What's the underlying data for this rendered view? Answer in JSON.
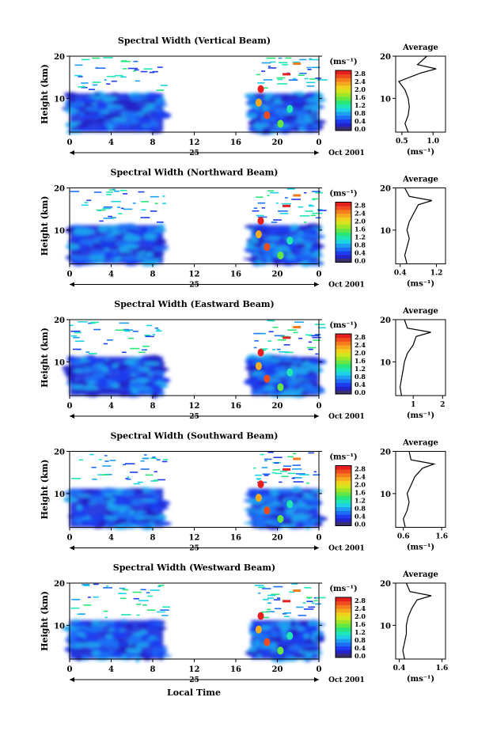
{
  "figure": {
    "common_xlabel": "Local Time",
    "date_label": "Oct 2001",
    "day_label": "25",
    "colorbar": {
      "unit": "(ms⁻¹)",
      "ticks": [
        "2.8",
        "2.4",
        "2.0",
        "1.6",
        "1.2",
        "0.8",
        "0.4",
        "0.0"
      ],
      "colors": [
        "#3a2f6e",
        "#2323c8",
        "#1e3cf0",
        "#1e6ef5",
        "#1ea0f0",
        "#1ed2e6",
        "#1ee6b4",
        "#28e678",
        "#64e646",
        "#a0e628",
        "#d2e61e",
        "#f0d21e",
        "#f5aa1e",
        "#f57d1e",
        "#f04b1e",
        "#e61e1e"
      ]
    }
  },
  "chart_data": [
    {
      "type": "heatmap",
      "title": "Spectral Width (Vertical Beam)",
      "ylabel": "Height (km)",
      "xlim": [
        0,
        24
      ],
      "ylim": [
        2,
        20
      ],
      "xticks": [
        "0",
        "4",
        "8",
        "12",
        "16",
        "20",
        "0"
      ],
      "yticks": [
        "10",
        "20"
      ],
      "data_gaps_hours": [
        [
          9,
          17.5
        ]
      ],
      "profile": {
        "title": "Average",
        "xlabel": "(ms⁻¹)",
        "xticks": [
          "0.5",
          "1.0"
        ],
        "xlim": [
          0.4,
          1.2
        ],
        "y": [
          2,
          4,
          6,
          8,
          10,
          12,
          14,
          16,
          17,
          18,
          20
        ],
        "x": [
          0.6,
          0.55,
          0.6,
          0.62,
          0.6,
          0.55,
          0.45,
          0.8,
          1.05,
          0.75,
          0.9
        ]
      }
    },
    {
      "type": "heatmap",
      "title": "Spectral Width (Northward Beam)",
      "ylabel": "Height (km)",
      "xlim": [
        0,
        24
      ],
      "ylim": [
        2,
        20
      ],
      "xticks": [
        "0",
        "4",
        "8",
        "12",
        "16",
        "20",
        "0"
      ],
      "yticks": [
        "10",
        "20"
      ],
      "data_gaps_hours": [
        [
          9,
          17.5
        ]
      ],
      "profile": {
        "title": "Average",
        "xlabel": "(ms⁻¹)",
        "xticks": [
          "0.4",
          "1.2"
        ],
        "xlim": [
          0.3,
          1.4
        ],
        "y": [
          2,
          4,
          6,
          8,
          10,
          12,
          14,
          16,
          17,
          18,
          20
        ],
        "x": [
          0.55,
          0.5,
          0.55,
          0.6,
          0.55,
          0.6,
          0.7,
          0.8,
          1.1,
          0.6,
          0.5
        ]
      }
    },
    {
      "type": "heatmap",
      "title": "Spectral Width (Eastward Beam)",
      "ylabel": "Height (km)",
      "xlim": [
        0,
        24
      ],
      "ylim": [
        2,
        20
      ],
      "xticks": [
        "0",
        "4",
        "8",
        "12",
        "16",
        "20",
        "0"
      ],
      "yticks": [
        "10",
        "20"
      ],
      "data_gaps_hours": [
        [
          9,
          17.5
        ]
      ],
      "profile": {
        "title": "Average",
        "xlabel": "(ms⁻¹)",
        "xticks": [
          "1",
          "2"
        ],
        "xlim": [
          0.4,
          2.1
        ],
        "y": [
          2,
          4,
          6,
          8,
          10,
          12,
          14,
          16,
          17,
          18,
          20
        ],
        "x": [
          0.6,
          0.55,
          0.6,
          0.65,
          0.7,
          0.8,
          1.0,
          1.1,
          1.6,
          0.8,
          0.7
        ]
      }
    },
    {
      "type": "heatmap",
      "title": "Spectral Width (Southward Beam)",
      "ylabel": "Height (km)",
      "xlim": [
        0,
        24
      ],
      "ylim": [
        2,
        20
      ],
      "xticks": [
        "0",
        "4",
        "8",
        "12",
        "16",
        "20",
        "0"
      ],
      "yticks": [
        "10",
        "20"
      ],
      "data_gaps_hours": [
        [
          9,
          17.5
        ]
      ],
      "profile": {
        "title": "Average",
        "xlabel": "(ms⁻¹)",
        "xticks": [
          "0.6",
          "1.6"
        ],
        "xlim": [
          0.4,
          1.7
        ],
        "y": [
          2,
          4,
          6,
          8,
          10,
          12,
          14,
          16,
          17,
          18,
          20
        ],
        "x": [
          0.65,
          0.6,
          0.7,
          0.75,
          0.7,
          0.8,
          0.9,
          1.1,
          1.4,
          0.8,
          0.75
        ]
      }
    },
    {
      "type": "heatmap",
      "title": "Spectral Width (Westward Beam)",
      "ylabel": "Height (km)",
      "xlim": [
        0,
        24
      ],
      "ylim": [
        2,
        20
      ],
      "xticks": [
        "0",
        "4",
        "8",
        "12",
        "16",
        "20",
        "0"
      ],
      "yticks": [
        "10",
        "20"
      ],
      "data_gaps_hours": [
        [
          9,
          17.5
        ]
      ],
      "profile": {
        "title": "Average",
        "xlabel": "(ms⁻¹)",
        "xticks": [
          "0.4",
          "1.6"
        ],
        "xlim": [
          0.3,
          1.7
        ],
        "y": [
          2,
          4,
          6,
          8,
          10,
          12,
          14,
          16,
          17,
          18,
          20
        ],
        "x": [
          0.55,
          0.5,
          0.55,
          0.6,
          0.6,
          0.65,
          0.75,
          0.9,
          1.3,
          0.7,
          0.6
        ]
      }
    }
  ]
}
